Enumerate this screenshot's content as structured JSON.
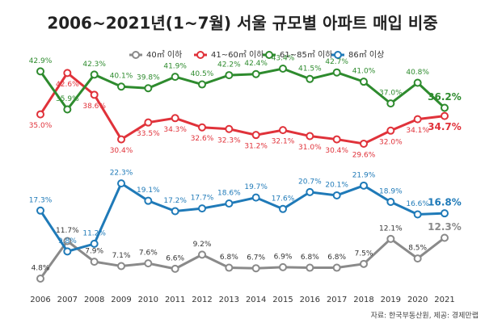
{
  "chart_data": {
    "type": "line",
    "title": "2006~2021년(1~7월) 서울 규모별 아파트 매입 비중",
    "source": "자료: 한국부동산원, 제공: 경제만랩",
    "categories": [
      "2006",
      "2007",
      "2008",
      "2009",
      "2010",
      "2011",
      "2012",
      "2013",
      "2014",
      "2015",
      "2016",
      "2017",
      "2018",
      "2019",
      "2020",
      "2021"
    ],
    "series": [
      {
        "name": "40㎡ 이하",
        "color": "#8a8a8a",
        "values": [
          4.8,
          11.7,
          7.9,
          7.1,
          7.6,
          6.6,
          9.2,
          6.8,
          6.7,
          6.9,
          6.8,
          6.8,
          7.5,
          12.1,
          8.5,
          12.3
        ],
        "value_labels": [
          "4.8%",
          "11.7%",
          "7.9%",
          "7.1%",
          "7.6%",
          "6.6%",
          "9.2%",
          "6.8%",
          "6.7%",
          "6.9%",
          "6.8%",
          "6.8%",
          "7.5%",
          "12.1%",
          "8.5%",
          "12.3%"
        ]
      },
      {
        "name": "41~60㎡ 이하",
        "color": "#e0323a",
        "values": [
          35.0,
          42.6,
          38.6,
          30.4,
          33.5,
          34.3,
          32.6,
          32.3,
          31.2,
          32.1,
          31.0,
          30.4,
          29.6,
          32.0,
          34.1,
          34.7
        ],
        "value_labels": [
          "35.0%",
          "42.6%",
          "38.6%",
          "30.4%",
          "33.5%",
          "34.3%",
          "32.6%",
          "32.3%",
          "31.2%",
          "32.1%",
          "31.0%",
          "30.4%",
          "29.6%",
          "32.0%",
          "34.1%",
          "34.7%"
        ]
      },
      {
        "name": "61~85㎡ 이하",
        "color": "#2e8b2e",
        "values": [
          42.9,
          35.9,
          42.3,
          40.1,
          39.8,
          41.9,
          40.5,
          42.2,
          42.4,
          43.4,
          41.5,
          42.7,
          41.0,
          37.0,
          40.8,
          36.2
        ],
        "value_labels": [
          "42.9%",
          "35.9%",
          "42.3%",
          "40.1%",
          "39.8%",
          "41.9%",
          "40.5%",
          "42.2%",
          "42.4%",
          "43.4%",
          "41.5%",
          "42.7%",
          "41.0%",
          "37.0%",
          "40.8%",
          "36.2%"
        ]
      },
      {
        "name": "86㎡ 이상",
        "color": "#1f7ab8",
        "values": [
          17.3,
          9.8,
          11.2,
          22.3,
          19.1,
          17.2,
          17.7,
          18.6,
          19.7,
          17.6,
          20.7,
          20.1,
          21.9,
          18.9,
          16.6,
          16.8
        ],
        "value_labels": [
          "17.3%",
          "9.8%",
          "11.2%",
          "22.3%",
          "19.1%",
          "17.2%",
          "17.7%",
          "18.6%",
          "19.7%",
          "17.6%",
          "20.7%",
          "20.1%",
          "21.9%",
          "18.9%",
          "16.6%",
          "16.8%"
        ]
      }
    ]
  }
}
